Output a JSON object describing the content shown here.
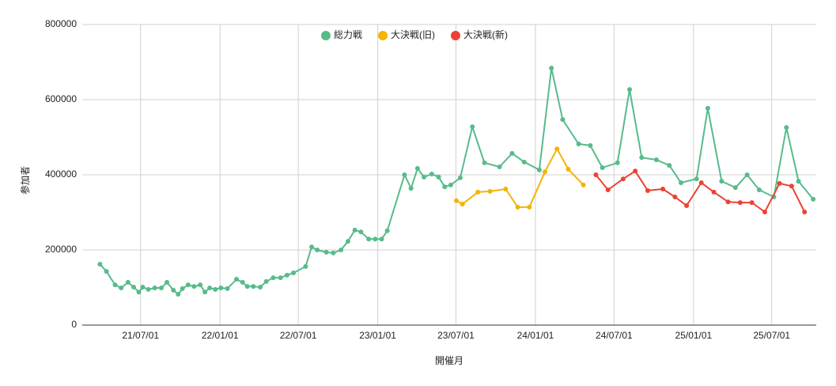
{
  "chart_data": {
    "type": "line",
    "x_label": "開催月",
    "y_label": "参加者",
    "legend": "top",
    "grid": true,
    "xlim": [
      "21/02/16",
      "25/10/12"
    ],
    "xticks": [
      "21/07/01",
      "22/01/01",
      "22/07/01",
      "23/01/01",
      "23/07/01",
      "24/01/01",
      "24/07/01",
      "25/01/01",
      "25/07/01"
    ],
    "ylim": [
      0,
      800000
    ],
    "yticks": [
      0,
      200000,
      400000,
      600000,
      800000
    ],
    "series": [
      {
        "name": "総力戦",
        "color": "#57bb8a",
        "x": [
          "21/03/29",
          "21/04/13",
          "21/05/03",
          "21/05/17",
          "21/06/02",
          "21/06/15",
          "21/06/27",
          "21/07/06",
          "21/07/19",
          "21/08/03",
          "21/08/18",
          "21/08/31",
          "21/09/15",
          "21/09/26",
          "21/10/06",
          "21/10/19",
          "21/11/02",
          "21/11/16",
          "21/11/27",
          "21/12/08",
          "21/12/21",
          "22/01/03",
          "22/01/18",
          "22/02/08",
          "22/02/22",
          "22/03/05",
          "22/03/19",
          "22/04/04",
          "22/04/18",
          "22/05/04",
          "22/05/21",
          "22/06/05",
          "22/06/20",
          "22/07/18",
          "22/08/01",
          "22/08/14",
          "22/09/04",
          "22/09/20",
          "22/10/08",
          "22/10/24",
          "22/11/09",
          "22/11/23",
          "22/12/11",
          "22/12/26",
          "23/01/10",
          "23/01/23",
          "23/03/04",
          "23/03/19",
          "23/04/03",
          "23/04/18",
          "23/05/06",
          "23/05/22",
          "23/06/05",
          "23/06/19",
          "23/07/11",
          "23/08/08",
          "23/09/05",
          "23/10/10",
          "23/11/08",
          "23/12/06",
          "24/01/10",
          "24/02/07",
          "24/03/04",
          "24/04/10",
          "24/05/07",
          "24/06/04",
          "24/07/09",
          "24/08/06",
          "24/09/03",
          "24/10/07",
          "24/11/06",
          "24/12/03",
          "25/01/08",
          "25/02/03",
          "25/03/07",
          "25/04/08",
          "25/05/05",
          "25/06/02",
          "25/07/06",
          "25/08/04",
          "25/09/01",
          "25/10/05"
        ],
        "values": [
          162000,
          143000,
          107000,
          99000,
          114000,
          101000,
          88000,
          101000,
          95000,
          99000,
          99000,
          114000,
          93000,
          82000,
          97000,
          107000,
          103000,
          107000,
          88000,
          99000,
          95000,
          99000,
          97000,
          122000,
          114000,
          103000,
          103000,
          101000,
          116000,
          126000,
          126000,
          133000,
          139000,
          156000,
          208000,
          200000,
          194000,
          192000,
          200000,
          223000,
          253000,
          248000,
          229000,
          229000,
          229000,
          251000,
          400000,
          364000,
          417000,
          394000,
          402000,
          394000,
          368000,
          373000,
          392000,
          528000,
          432000,
          421000,
          457000,
          434000,
          413000,
          684000,
          547000,
          482000,
          478000,
          419000,
          432000,
          627000,
          446000,
          440000,
          425000,
          379000,
          389000,
          577000,
          383000,
          366000,
          400000,
          360000,
          341000,
          526000,
          383000,
          335000
        ]
      },
      {
        "name": "大決戦(旧)",
        "color": "#f4b400",
        "x": [
          "23/07/02",
          "23/07/16",
          "23/08/21",
          "23/09/18",
          "23/10/24",
          "23/11/21",
          "23/12/18",
          "24/01/23",
          "24/02/20",
          "24/03/17",
          "24/04/21"
        ],
        "values": [
          331000,
          322000,
          354000,
          356000,
          362000,
          314000,
          314000,
          408000,
          469000,
          415000,
          373000
        ]
      },
      {
        "name": "大決戦(新)",
        "color": "#ea4335",
        "x": [
          "24/05/20",
          "24/06/17",
          "24/07/22",
          "24/08/19",
          "24/09/17",
          "24/10/22",
          "24/11/19",
          "24/12/16",
          "25/01/19",
          "25/02/17",
          "25/03/22",
          "25/04/19",
          "25/05/16",
          "25/06/15",
          "25/07/19",
          "25/08/16",
          "25/09/15"
        ],
        "values": [
          400000,
          360000,
          389000,
          410000,
          358000,
          362000,
          341000,
          318000,
          379000,
          354000,
          328000,
          326000,
          326000,
          301000,
          377000,
          370000,
          301000
        ]
      }
    ]
  }
}
